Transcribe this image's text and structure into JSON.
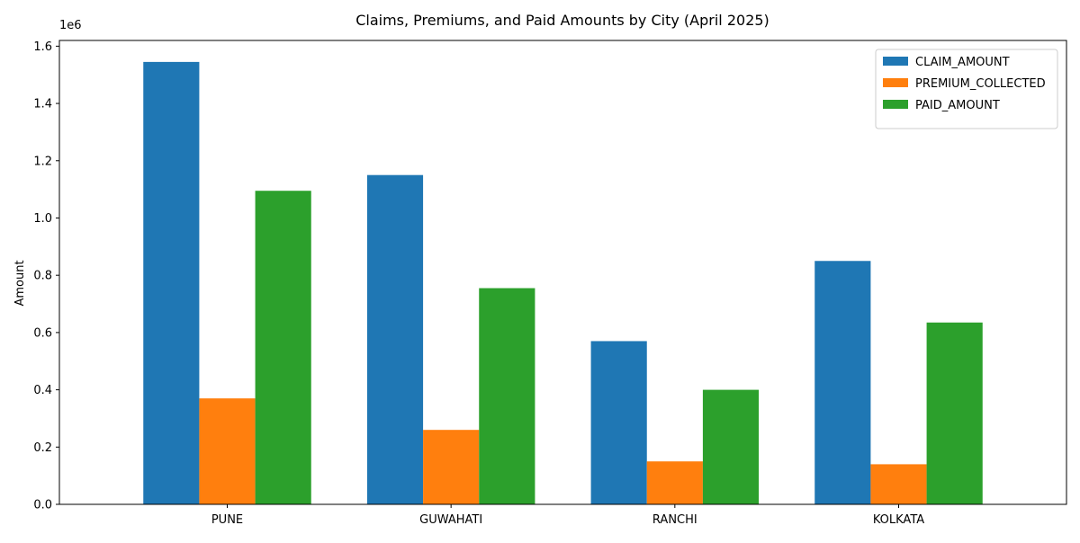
{
  "chart_data": {
    "type": "bar",
    "title": "Claims, Premiums, and Paid Amounts by City (April 2025)",
    "xlabel": "",
    "ylabel": "Amount",
    "offset_text": "1e6",
    "categories": [
      "PUNE",
      "GUWAHATI",
      "RANCHI",
      "KOLKATA"
    ],
    "ylim": [
      0,
      1620000
    ],
    "yticks": [
      0,
      200000,
      400000,
      600000,
      800000,
      1000000,
      1200000,
      1400000,
      1600000
    ],
    "ytick_labels": [
      "0.0",
      "0.2",
      "0.4",
      "0.6",
      "0.8",
      "1.0",
      "1.2",
      "1.4",
      "1.6"
    ],
    "series": [
      {
        "name": "CLAIM_AMOUNT",
        "color": "#1f77b4",
        "values": [
          1545000,
          1150000,
          570000,
          850000
        ]
      },
      {
        "name": "PREMIUM_COLLECTED",
        "color": "#ff7f0e",
        "values": [
          370000,
          260000,
          150000,
          140000
        ]
      },
      {
        "name": "PAID_AMOUNT",
        "color": "#2ca02c",
        "values": [
          1095000,
          755000,
          400000,
          635000
        ]
      }
    ],
    "legend_position": "top-right",
    "grid": false
  }
}
